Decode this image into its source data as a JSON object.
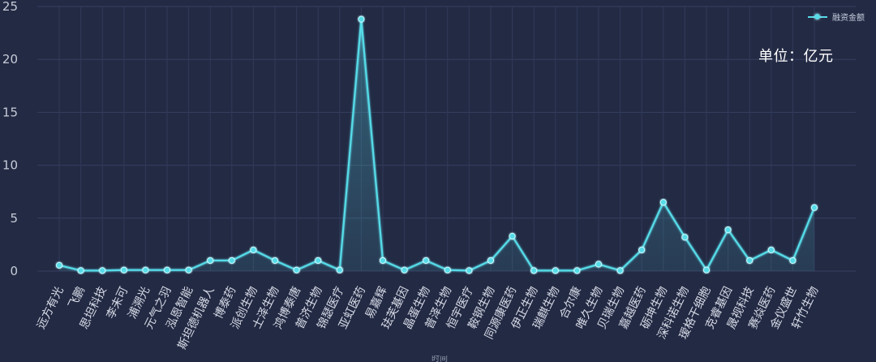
{
  "chart_data": {
    "type": "line",
    "title": "",
    "xlabel": "",
    "ylabel": "",
    "unit": "单位：亿元",
    "ylim": [
      0,
      25
    ],
    "y_ticks": [
      "0",
      "5",
      "10",
      "15",
      "20",
      "25"
    ],
    "legend": "融资金额",
    "series": [
      {
        "name": "融资金额",
        "color": "#57dbe8",
        "values": [
          0.55,
          0.05,
          0.05,
          0.1,
          0.1,
          0.1,
          0.1,
          1.0,
          1.0,
          2.0,
          1.0,
          0.1,
          1.0,
          0.1,
          23.8,
          1.0,
          0.1,
          1.0,
          0.1,
          0.05,
          1.0,
          3.3,
          0.05,
          0.05,
          0.05,
          0.65,
          0.05,
          2.0,
          6.5,
          3.2,
          0.1,
          3.9,
          1.0,
          2.0,
          1.0,
          6.0
        ]
      }
    ],
    "categories": [
      "远方有光",
      "飞鹏",
      "思坦科技",
      "李未可",
      "浦溯光",
      "元气之羽",
      "泓恩智能",
      "斯坦德机器人",
      "博泰药",
      "派创生物",
      "士泽生物",
      "鸿博泰唐",
      "普济生物",
      "锦瑟医疗",
      "亚虹医药",
      "易嘉辉",
      "珐芙基因",
      "晶蛋生物",
      "普泽生物",
      "恒宇医疗",
      "鞍钢生物",
      "同源康医药",
      "伊正生物",
      "瑞麒生物",
      "合尔康",
      "唯久生物",
      "贝瑞生物",
      "嘉越医药",
      "砺坤生物",
      "深科诺生物",
      "瑷格干细胞",
      "克睿基因",
      "晟视科技",
      "赛焱医药",
      "金仪盛世",
      "轩竹生物"
    ]
  },
  "partial_bottom_label": "时间"
}
